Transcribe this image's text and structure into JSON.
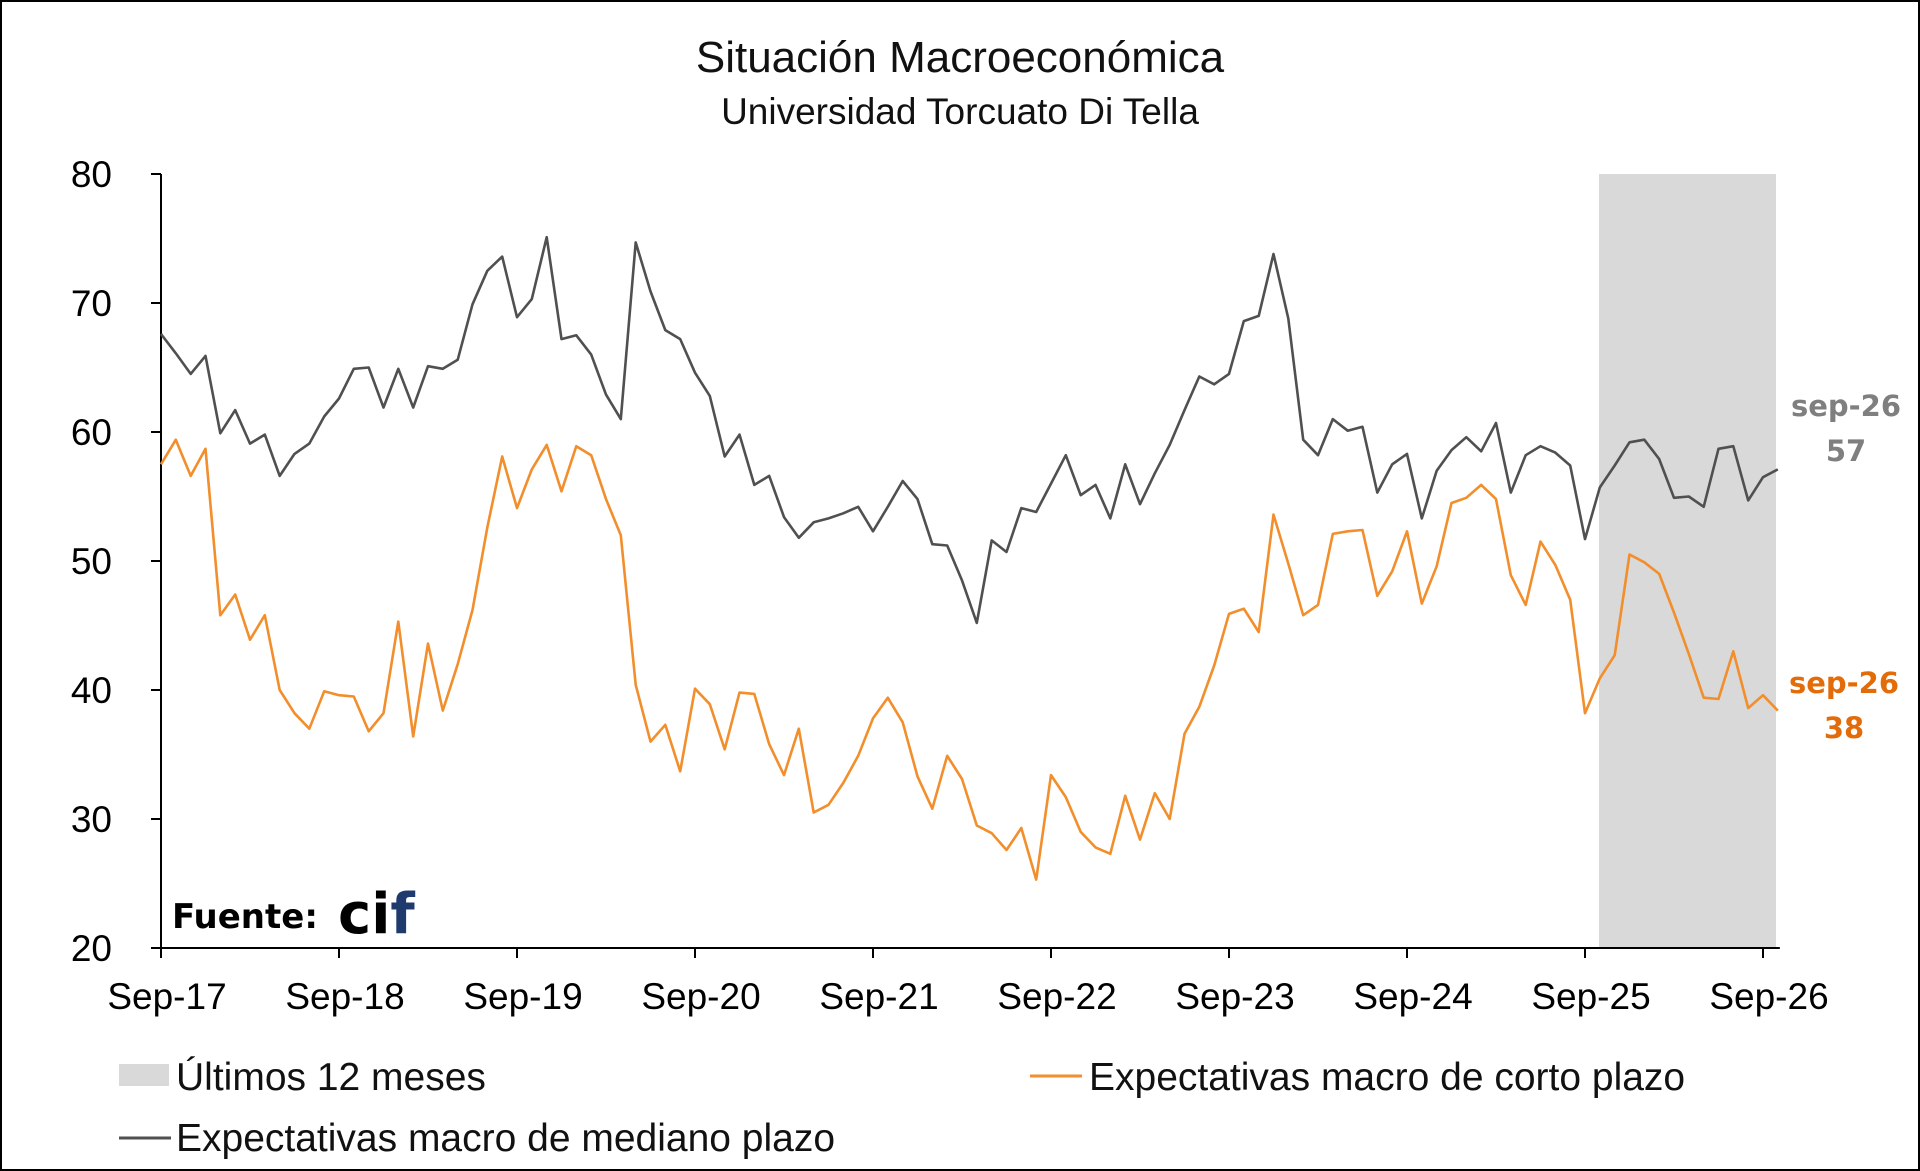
{
  "chart_data": {
    "type": "line",
    "title": "Situación Macroeconómica",
    "subtitle": "Universidad Torcuato Di Tella",
    "ylim": [
      20,
      80
    ],
    "yticks": [
      20,
      30,
      40,
      50,
      60,
      70,
      80
    ],
    "xticks": [
      "Sep-17",
      "Sep-18",
      "Sep-19",
      "Sep-20",
      "Sep-21",
      "Sep-22",
      "Sep-23",
      "Sep-24",
      "Sep-25",
      "Sep-26"
    ],
    "x_start": "Sep-17",
    "x_end": "Sep-26",
    "highlight": {
      "label": "Últimos 12 meses",
      "from": "Sep-25",
      "to": "Sep-26",
      "color": "#d9d9d9"
    },
    "series": [
      {
        "name": "Expectativas macro de corto plazo",
        "color": "#f28e2b",
        "end_label": {
          "line1": "sep-26",
          "line2": "38"
        },
        "values": [
          57.5,
          59.4,
          56.6,
          58.7,
          45.8,
          47.4,
          43.9,
          45.8,
          40.0,
          38.2,
          37.0,
          39.9,
          39.6,
          39.5,
          36.8,
          38.2,
          45.3,
          36.4,
          43.6,
          38.4,
          42.0,
          46.2,
          52.6,
          58.1,
          54.1,
          57.1,
          59.0,
          55.4,
          58.9,
          58.2,
          54.8,
          52.0,
          40.4,
          36.0,
          37.3,
          33.7,
          40.1,
          38.9,
          35.4,
          39.8,
          39.7,
          35.8,
          33.4,
          37.0,
          30.5,
          31.1,
          32.8,
          34.9,
          37.8,
          39.4,
          37.5,
          33.3,
          30.8,
          34.9,
          33.1,
          29.5,
          28.9,
          27.6,
          29.3,
          25.3,
          33.4,
          31.7,
          29.0,
          27.8,
          27.3,
          31.8,
          28.4,
          32.0,
          30.0,
          36.6,
          38.7,
          41.9,
          45.9,
          46.3,
          44.5,
          53.6,
          49.8,
          45.8,
          46.6,
          52.1,
          52.3,
          52.4,
          47.3,
          49.2,
          52.3,
          46.7,
          49.6,
          54.5,
          54.9,
          55.9,
          54.8,
          48.9,
          46.6,
          51.5,
          49.7,
          47.0,
          38.2,
          40.9,
          42.7,
          50.5,
          49.9,
          49.0,
          46.0,
          42.8,
          39.4,
          39.3,
          43.0,
          38.6,
          39.6,
          38.4
        ]
      },
      {
        "name": "Expectativas macro de mediano plazo",
        "color": "#505050",
        "end_label": {
          "line1": "sep-26",
          "line2": "57"
        },
        "values": [
          67.6,
          66.1,
          64.5,
          65.9,
          59.9,
          61.7,
          59.1,
          59.8,
          56.6,
          58.3,
          59.1,
          61.2,
          62.6,
          64.9,
          65.0,
          61.9,
          64.9,
          61.9,
          65.1,
          64.9,
          65.6,
          69.9,
          72.5,
          73.6,
          68.9,
          70.3,
          75.1,
          67.2,
          67.5,
          66.0,
          62.9,
          61.0,
          74.7,
          70.9,
          67.9,
          67.2,
          64.6,
          62.8,
          58.1,
          59.8,
          55.9,
          56.6,
          53.4,
          51.8,
          53.0,
          53.3,
          53.7,
          54.2,
          52.3,
          54.2,
          56.2,
          54.8,
          51.3,
          51.2,
          48.5,
          45.2,
          51.6,
          50.7,
          54.1,
          53.8,
          56.0,
          58.2,
          55.1,
          55.9,
          53.3,
          57.5,
          54.4,
          56.8,
          59.0,
          61.7,
          64.3,
          63.7,
          64.5,
          68.6,
          69.0,
          73.8,
          68.8,
          59.4,
          58.2,
          61.0,
          60.1,
          60.4,
          55.3,
          57.5,
          58.3,
          53.3,
          57.0,
          58.6,
          59.6,
          58.5,
          60.7,
          55.3,
          58.2,
          58.9,
          58.4,
          57.4,
          51.7,
          55.7,
          57.4,
          59.2,
          59.4,
          57.9,
          54.9,
          55.0,
          54.2,
          58.7,
          58.9,
          54.7,
          56.5,
          57.1
        ]
      }
    ],
    "legend_position": "bottom",
    "grid": false
  },
  "source": {
    "label": "Fuente:",
    "logo": {
      "part1": "ci",
      "part2": "f",
      "color1": "#000000",
      "color2": "#1f3b6e"
    }
  }
}
